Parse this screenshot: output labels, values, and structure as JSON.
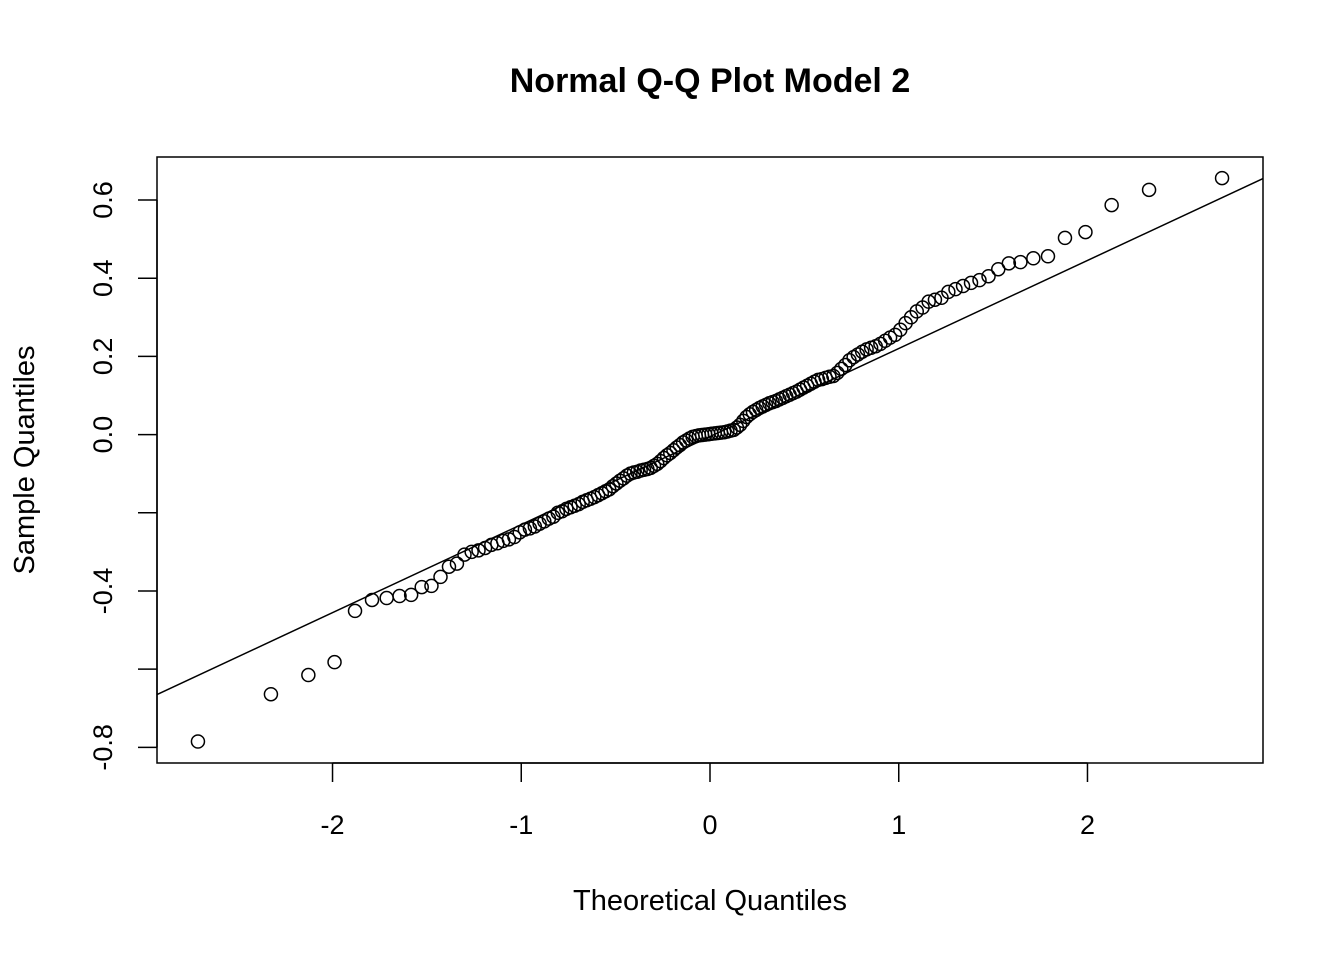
{
  "chart_data": {
    "type": "scatter",
    "title": "Normal Q-Q Plot Model 2",
    "xlabel": "Theoretical Quantiles",
    "ylabel": "Sample Quantiles",
    "xlim": [
      -2.93,
      2.93
    ],
    "ylim": [
      -0.84,
      0.71
    ],
    "x_ticks": [
      -2,
      -1,
      0,
      1,
      2
    ],
    "x_tick_labels": [
      "-2",
      "-1",
      "0",
      "1",
      "2"
    ],
    "y_ticks": [
      -0.8,
      -0.6,
      -0.4,
      -0.2,
      0.0,
      0.2,
      0.4,
      0.6
    ],
    "y_tick_labels": [
      "-0.8",
      "",
      "-0.4",
      "",
      "0.0",
      "0.2",
      "0.4",
      "0.6"
    ],
    "grid": false,
    "n": 150,
    "theoretical": "normal quantiles of ppoints(n)",
    "sample_quantiles": [
      -0.785,
      -0.664,
      -0.615,
      -0.582,
      -0.451,
      -0.423,
      -0.418,
      -0.413,
      -0.41,
      -0.39,
      -0.387,
      -0.364,
      -0.338,
      -0.33,
      -0.307,
      -0.3,
      -0.296,
      -0.29,
      -0.282,
      -0.278,
      -0.272,
      -0.268,
      -0.262,
      -0.25,
      -0.243,
      -0.24,
      -0.235,
      -0.228,
      -0.222,
      -0.215,
      -0.21,
      -0.2,
      -0.196,
      -0.19,
      -0.186,
      -0.182,
      -0.178,
      -0.172,
      -0.168,
      -0.164,
      -0.16,
      -0.155,
      -0.15,
      -0.145,
      -0.14,
      -0.132,
      -0.125,
      -0.118,
      -0.112,
      -0.105,
      -0.1,
      -0.097,
      -0.095,
      -0.092,
      -0.09,
      -0.088,
      -0.085,
      -0.08,
      -0.075,
      -0.068,
      -0.06,
      -0.053,
      -0.047,
      -0.04,
      -0.033,
      -0.027,
      -0.02,
      -0.015,
      -0.01,
      -0.006,
      -0.004,
      -0.002,
      -0.001,
      0.0,
      0.001,
      0.002,
      0.003,
      0.004,
      0.005,
      0.006,
      0.008,
      0.01,
      0.012,
      0.018,
      0.025,
      0.035,
      0.045,
      0.052,
      0.058,
      0.063,
      0.068,
      0.072,
      0.076,
      0.08,
      0.083,
      0.086,
      0.09,
      0.094,
      0.098,
      0.102,
      0.106,
      0.11,
      0.115,
      0.12,
      0.125,
      0.13,
      0.135,
      0.14,
      0.142,
      0.145,
      0.148,
      0.15,
      0.158,
      0.168,
      0.178,
      0.19,
      0.198,
      0.205,
      0.212,
      0.218,
      0.222,
      0.226,
      0.232,
      0.24,
      0.248,
      0.255,
      0.268,
      0.285,
      0.3,
      0.315,
      0.325,
      0.34,
      0.345,
      0.35,
      0.365,
      0.372,
      0.38,
      0.388,
      0.395,
      0.405,
      0.423,
      0.438,
      0.441,
      0.451,
      0.456,
      0.503,
      0.518,
      0.587,
      0.626,
      0.656
    ],
    "reference_line": {
      "intercept": -0.005,
      "slope": 0.2252
    },
    "marker": "open-circle",
    "color": "#000000"
  }
}
